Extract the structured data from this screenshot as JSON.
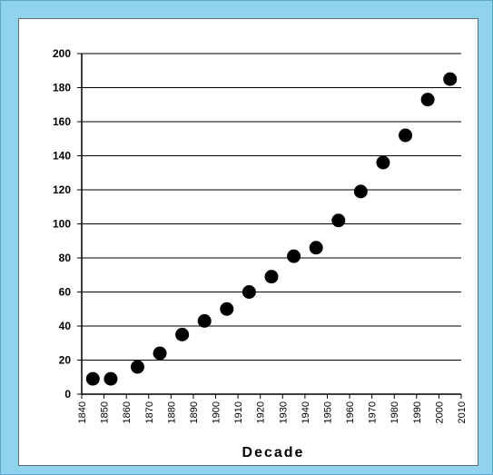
{
  "chart_data": {
    "type": "scatter",
    "title": "",
    "xlabel": "Decade",
    "ylabel": "",
    "xlim": [
      1840,
      2010
    ],
    "ylim": [
      0,
      200
    ],
    "x_ticks": [
      1840,
      1850,
      1860,
      1870,
      1880,
      1890,
      1900,
      1910,
      1920,
      1930,
      1940,
      1950,
      1960,
      1970,
      1980,
      1990,
      2000,
      2010
    ],
    "y_ticks": [
      0,
      20,
      40,
      60,
      80,
      100,
      120,
      140,
      160,
      180,
      200
    ],
    "grid": "horizontal",
    "legend": "none",
    "marker_color": "#000000",
    "series": [
      {
        "x": [
          1845,
          1853,
          1865,
          1875,
          1885,
          1895,
          1905,
          1915,
          1925,
          1935,
          1945,
          1955,
          1965,
          1975,
          1985,
          1995,
          2005
        ],
        "y": [
          9,
          9,
          16,
          24,
          35,
          43,
          50,
          60,
          69,
          81,
          86,
          102,
          119,
          136,
          152,
          173,
          185
        ]
      }
    ]
  }
}
